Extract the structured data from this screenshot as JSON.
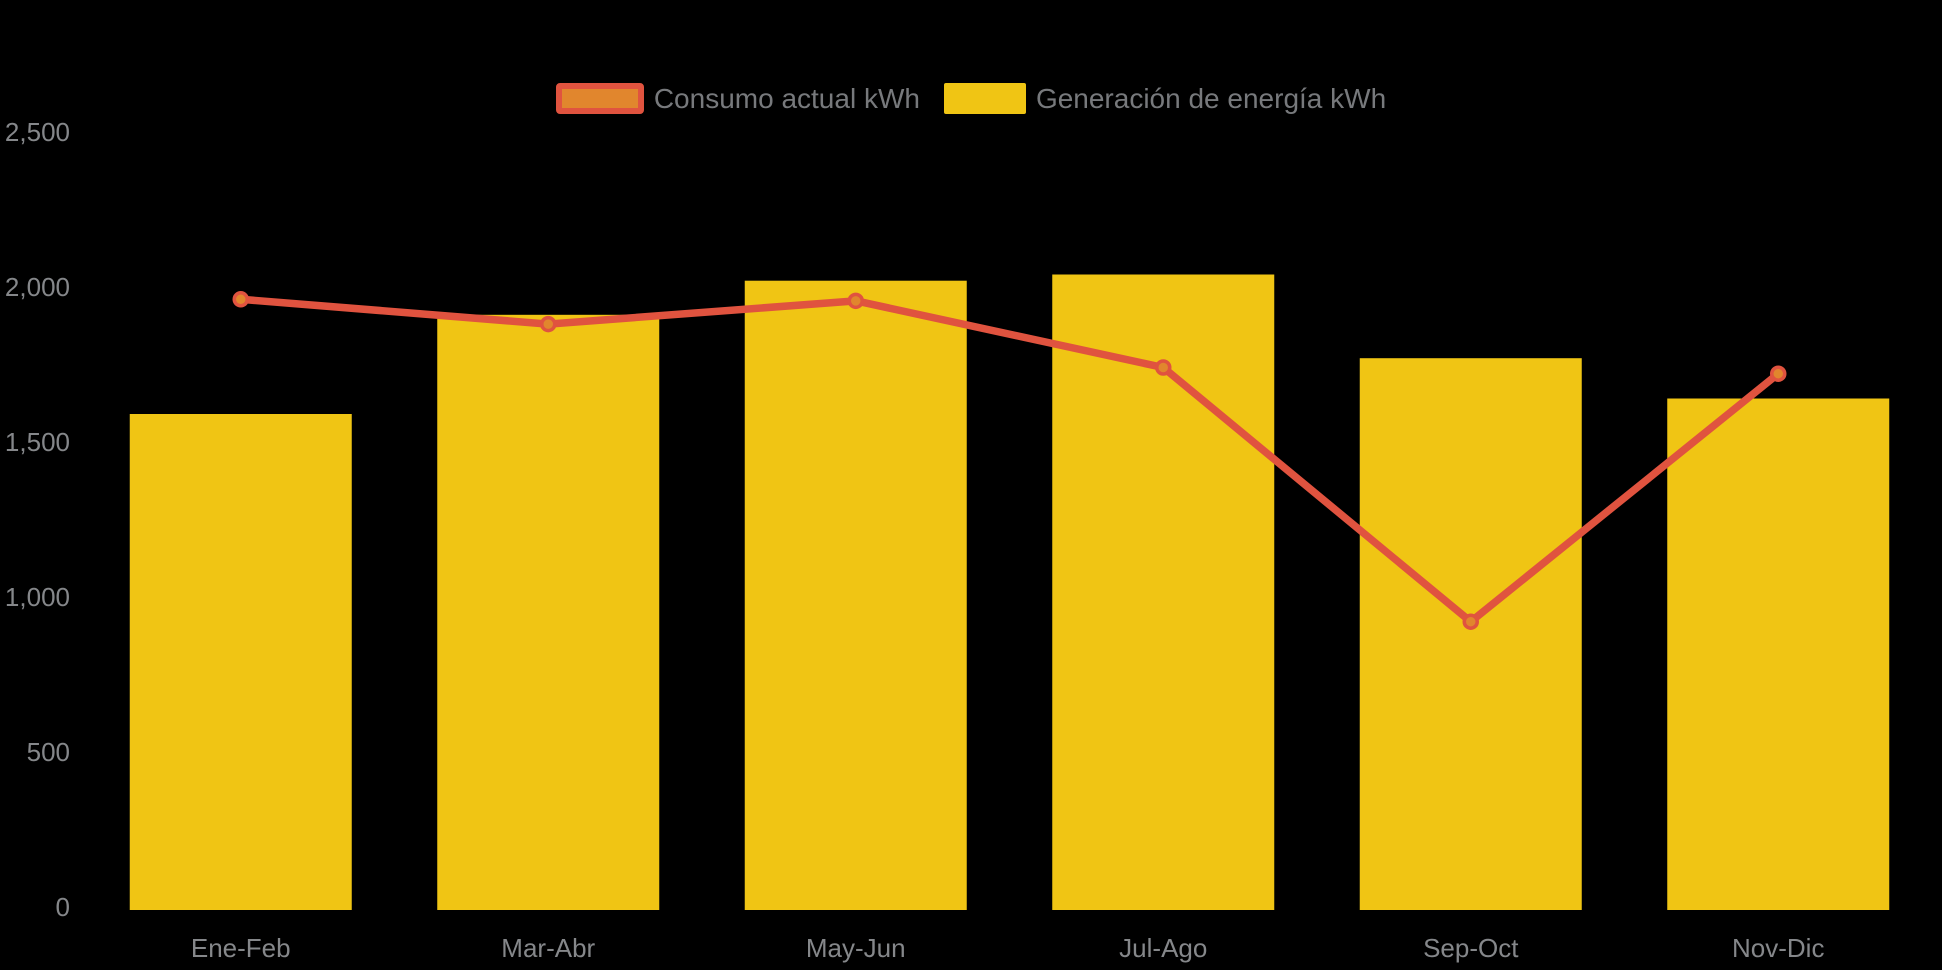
{
  "colors": {
    "background": "#000000",
    "axis_text": "#85878a",
    "legend_text": "#77797c",
    "bar_yellow": "#f0c514",
    "line_red": "#e0533f",
    "point_orange": "#e1862d"
  },
  "chart_data": {
    "type": "mixed-bar-line",
    "title": "",
    "xlabel": "",
    "ylabel": "",
    "categories": [
      "Ene-Feb",
      "Mar-Abr",
      "May-Jun",
      "Jul-Ago",
      "Sep-Oct",
      "Nov-Dic"
    ],
    "series": [
      {
        "name": "Consumo actual kWh",
        "type": "line",
        "color": "#e0533f",
        "point_fill": "#e1862d",
        "values": [
          1970,
          1890,
          1965,
          1750,
          930,
          1730
        ]
      },
      {
        "name": "Generación de energía kWh",
        "type": "bar",
        "color": "#f0c514",
        "values": [
          1600,
          1920,
          2030,
          2050,
          1780,
          1650
        ]
      }
    ],
    "ylim": [
      0,
      2500
    ],
    "y_ticks": [
      {
        "value": 0,
        "label": "0"
      },
      {
        "value": 500,
        "label": "500"
      },
      {
        "value": 1000,
        "label": "1,000"
      },
      {
        "value": 1500,
        "label": "1,500"
      },
      {
        "value": 2000,
        "label": "2,000"
      },
      {
        "value": 2500,
        "label": "2,500"
      }
    ],
    "grid": false,
    "axis_lines": false,
    "legend_position": "top-center"
  }
}
